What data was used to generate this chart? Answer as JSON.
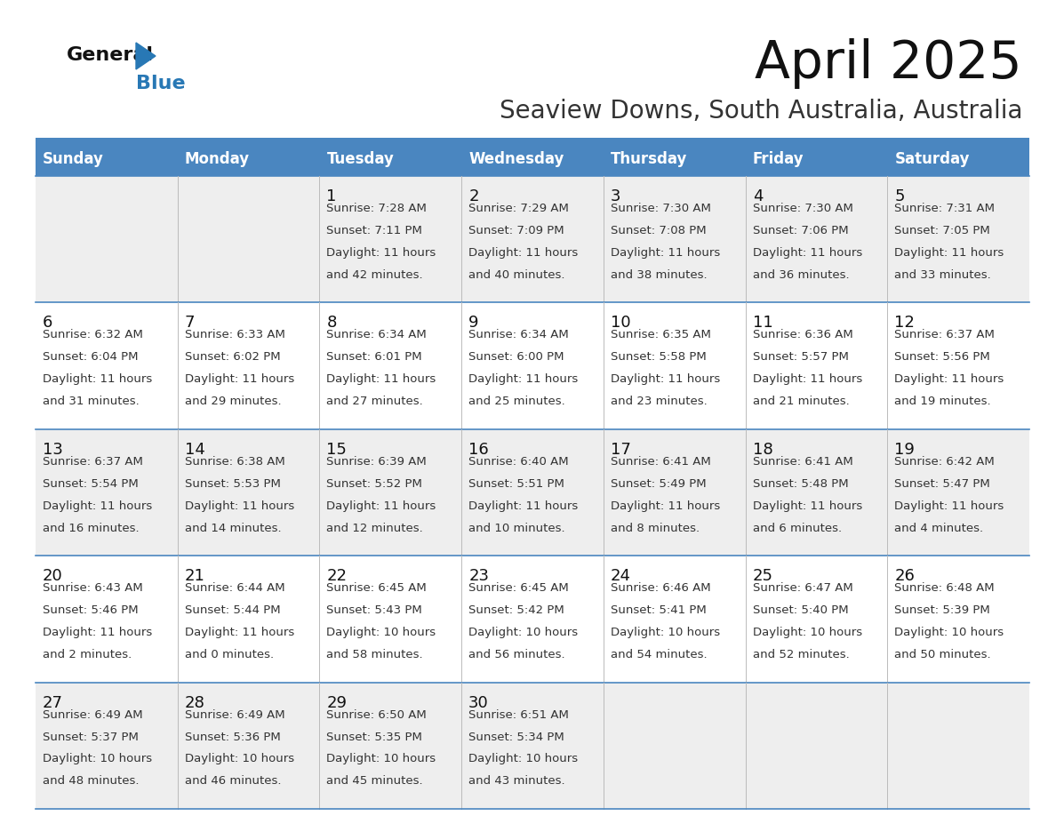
{
  "title": "April 2025",
  "subtitle": "Seaview Downs, South Australia, Australia",
  "header_bg": "#4a86c0",
  "header_text": "#ffffff",
  "row_bg_white": "#ffffff",
  "row_bg_gray": "#eeeeee",
  "border_color": "#4a86c0",
  "text_color_dark": "#222222",
  "text_color_info": "#444444",
  "days_of_week": [
    "Sunday",
    "Monday",
    "Tuesday",
    "Wednesday",
    "Thursday",
    "Friday",
    "Saturday"
  ],
  "calendar": [
    [
      {
        "day": "",
        "info": ""
      },
      {
        "day": "",
        "info": ""
      },
      {
        "day": "1",
        "info": "Sunrise: 7:28 AM\nSunset: 7:11 PM\nDaylight: 11 hours\nand 42 minutes."
      },
      {
        "day": "2",
        "info": "Sunrise: 7:29 AM\nSunset: 7:09 PM\nDaylight: 11 hours\nand 40 minutes."
      },
      {
        "day": "3",
        "info": "Sunrise: 7:30 AM\nSunset: 7:08 PM\nDaylight: 11 hours\nand 38 minutes."
      },
      {
        "day": "4",
        "info": "Sunrise: 7:30 AM\nSunset: 7:06 PM\nDaylight: 11 hours\nand 36 minutes."
      },
      {
        "day": "5",
        "info": "Sunrise: 7:31 AM\nSunset: 7:05 PM\nDaylight: 11 hours\nand 33 minutes."
      }
    ],
    [
      {
        "day": "6",
        "info": "Sunrise: 6:32 AM\nSunset: 6:04 PM\nDaylight: 11 hours\nand 31 minutes."
      },
      {
        "day": "7",
        "info": "Sunrise: 6:33 AM\nSunset: 6:02 PM\nDaylight: 11 hours\nand 29 minutes."
      },
      {
        "day": "8",
        "info": "Sunrise: 6:34 AM\nSunset: 6:01 PM\nDaylight: 11 hours\nand 27 minutes."
      },
      {
        "day": "9",
        "info": "Sunrise: 6:34 AM\nSunset: 6:00 PM\nDaylight: 11 hours\nand 25 minutes."
      },
      {
        "day": "10",
        "info": "Sunrise: 6:35 AM\nSunset: 5:58 PM\nDaylight: 11 hours\nand 23 minutes."
      },
      {
        "day": "11",
        "info": "Sunrise: 6:36 AM\nSunset: 5:57 PM\nDaylight: 11 hours\nand 21 minutes."
      },
      {
        "day": "12",
        "info": "Sunrise: 6:37 AM\nSunset: 5:56 PM\nDaylight: 11 hours\nand 19 minutes."
      }
    ],
    [
      {
        "day": "13",
        "info": "Sunrise: 6:37 AM\nSunset: 5:54 PM\nDaylight: 11 hours\nand 16 minutes."
      },
      {
        "day": "14",
        "info": "Sunrise: 6:38 AM\nSunset: 5:53 PM\nDaylight: 11 hours\nand 14 minutes."
      },
      {
        "day": "15",
        "info": "Sunrise: 6:39 AM\nSunset: 5:52 PM\nDaylight: 11 hours\nand 12 minutes."
      },
      {
        "day": "16",
        "info": "Sunrise: 6:40 AM\nSunset: 5:51 PM\nDaylight: 11 hours\nand 10 minutes."
      },
      {
        "day": "17",
        "info": "Sunrise: 6:41 AM\nSunset: 5:49 PM\nDaylight: 11 hours\nand 8 minutes."
      },
      {
        "day": "18",
        "info": "Sunrise: 6:41 AM\nSunset: 5:48 PM\nDaylight: 11 hours\nand 6 minutes."
      },
      {
        "day": "19",
        "info": "Sunrise: 6:42 AM\nSunset: 5:47 PM\nDaylight: 11 hours\nand 4 minutes."
      }
    ],
    [
      {
        "day": "20",
        "info": "Sunrise: 6:43 AM\nSunset: 5:46 PM\nDaylight: 11 hours\nand 2 minutes."
      },
      {
        "day": "21",
        "info": "Sunrise: 6:44 AM\nSunset: 5:44 PM\nDaylight: 11 hours\nand 0 minutes."
      },
      {
        "day": "22",
        "info": "Sunrise: 6:45 AM\nSunset: 5:43 PM\nDaylight: 10 hours\nand 58 minutes."
      },
      {
        "day": "23",
        "info": "Sunrise: 6:45 AM\nSunset: 5:42 PM\nDaylight: 10 hours\nand 56 minutes."
      },
      {
        "day": "24",
        "info": "Sunrise: 6:46 AM\nSunset: 5:41 PM\nDaylight: 10 hours\nand 54 minutes."
      },
      {
        "day": "25",
        "info": "Sunrise: 6:47 AM\nSunset: 5:40 PM\nDaylight: 10 hours\nand 52 minutes."
      },
      {
        "day": "26",
        "info": "Sunrise: 6:48 AM\nSunset: 5:39 PM\nDaylight: 10 hours\nand 50 minutes."
      }
    ],
    [
      {
        "day": "27",
        "info": "Sunrise: 6:49 AM\nSunset: 5:37 PM\nDaylight: 10 hours\nand 48 minutes."
      },
      {
        "day": "28",
        "info": "Sunrise: 6:49 AM\nSunset: 5:36 PM\nDaylight: 10 hours\nand 46 minutes."
      },
      {
        "day": "29",
        "info": "Sunrise: 6:50 AM\nSunset: 5:35 PM\nDaylight: 10 hours\nand 45 minutes."
      },
      {
        "day": "30",
        "info": "Sunrise: 6:51 AM\nSunset: 5:34 PM\nDaylight: 10 hours\nand 43 minutes."
      },
      {
        "day": "",
        "info": ""
      },
      {
        "day": "",
        "info": ""
      },
      {
        "day": "",
        "info": ""
      }
    ]
  ],
  "row_colors": [
    "#eeeeee",
    "#ffffff",
    "#eeeeee",
    "#ffffff",
    "#eeeeee"
  ]
}
